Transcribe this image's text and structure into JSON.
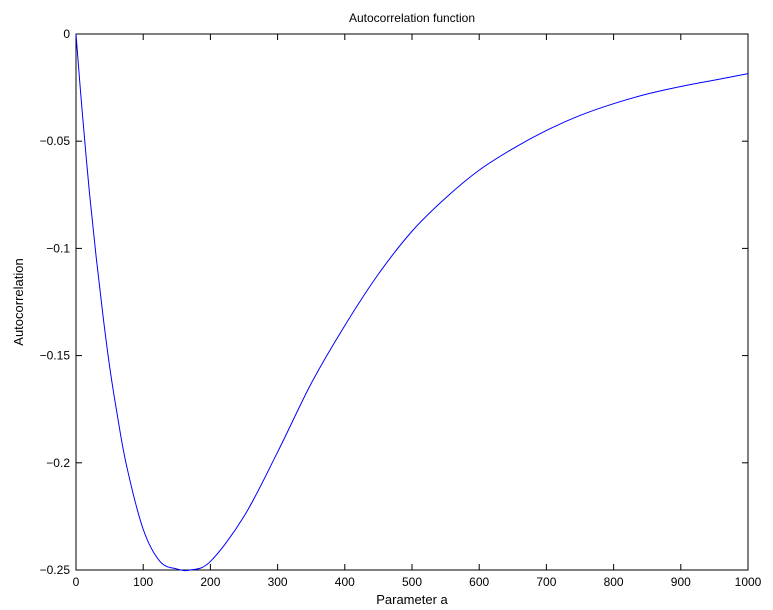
{
  "chart_data": {
    "type": "line",
    "title": "Autocorrelation function",
    "xlabel": "Parameter a",
    "ylabel": "Autocorrelation",
    "xlim": [
      0,
      1000
    ],
    "ylim": [
      -0.25,
      0
    ],
    "xticks": [
      0,
      100,
      200,
      300,
      400,
      500,
      600,
      700,
      800,
      900,
      1000
    ],
    "yticks": [
      0,
      -0.05,
      -0.1,
      -0.15,
      -0.2,
      -0.25
    ],
    "xtick_labels": [
      "0",
      "100",
      "200",
      "300",
      "400",
      "500",
      "600",
      "700",
      "800",
      "900",
      "1000"
    ],
    "ytick_labels": [
      "0",
      "−0.05",
      "−0.1",
      "−0.15",
      "−0.2",
      "−0.25"
    ],
    "grid": false,
    "line_color": "#0000ff",
    "series": [
      {
        "x": [
          0,
          5,
          10,
          20,
          30,
          40,
          50,
          60,
          75,
          100,
          125,
          150,
          170,
          200,
          250,
          300,
          350,
          400,
          450,
          500,
          550,
          600,
          650,
          700,
          750,
          800,
          850,
          900,
          950,
          1000
        ],
        "values": [
          0,
          -0.02,
          -0.039,
          -0.074,
          -0.104,
          -0.131,
          -0.155,
          -0.175,
          -0.201,
          -0.231,
          -0.246,
          -0.2495,
          -0.25,
          -0.246,
          -0.225,
          -0.195,
          -0.163,
          -0.136,
          -0.112,
          -0.092,
          -0.0765,
          -0.0635,
          -0.0535,
          -0.045,
          -0.038,
          -0.0325,
          -0.028,
          -0.0245,
          -0.0215,
          -0.0185
        ]
      }
    ]
  }
}
